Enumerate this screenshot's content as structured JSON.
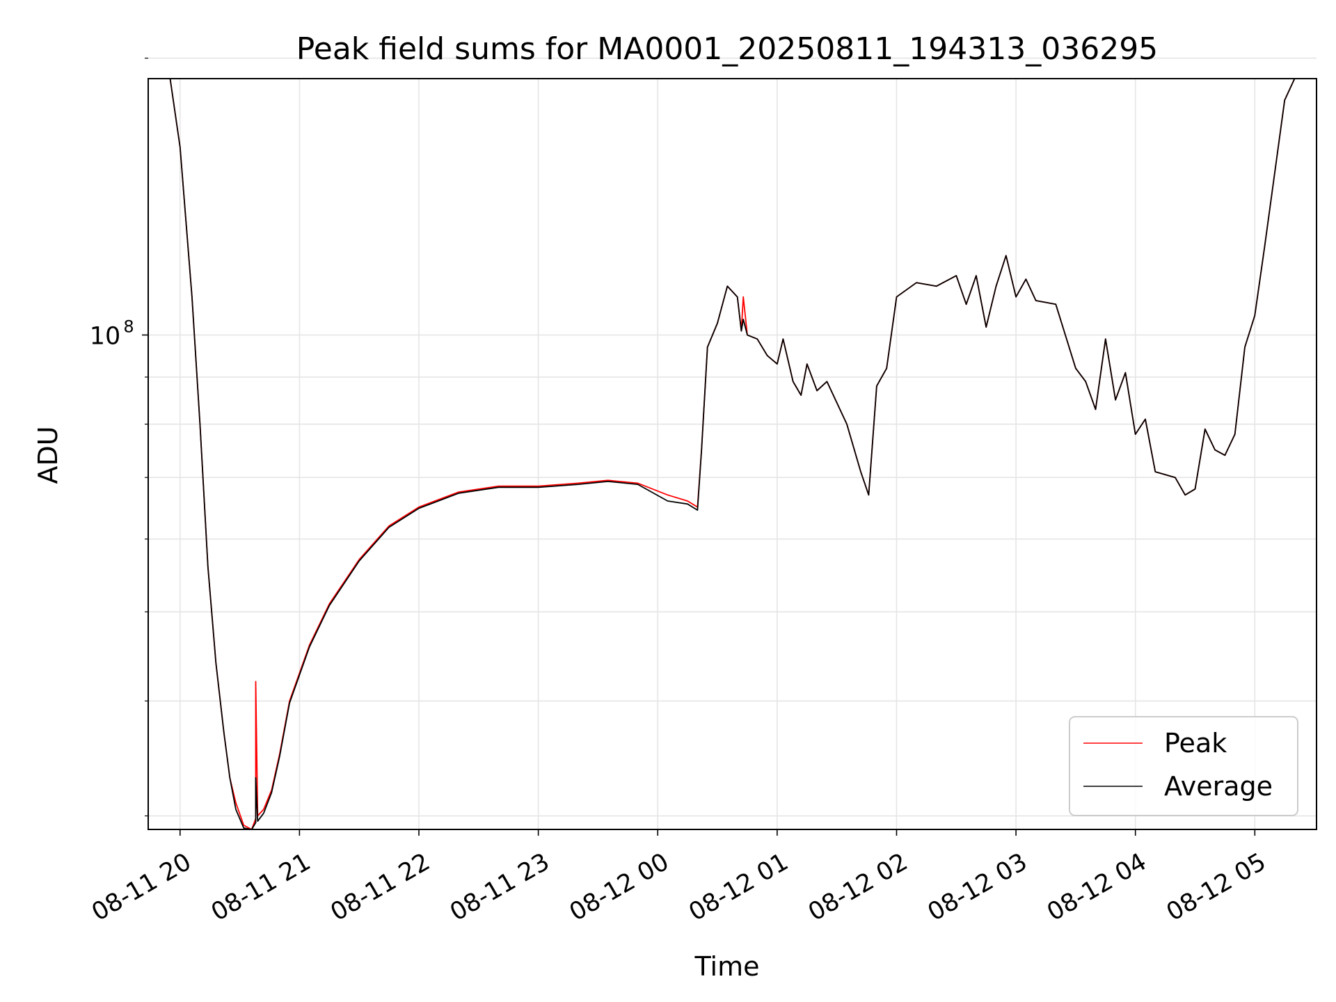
{
  "chart_data": {
    "type": "line",
    "title": "Peak field sums for MA0001_20250811_194313_036295",
    "xlabel": "Time",
    "ylabel": "ADU",
    "y_scale": "log",
    "y_major_tick_label": "10^8",
    "y_major_tick": {
      "base": "10",
      "exponent": "8",
      "value": 100000000
    },
    "x_tick_labels": [
      "08-11 20",
      "08-11 21",
      "08-11 22",
      "08-11 23",
      "08-12 00",
      "08-12 01",
      "08-12 02",
      "08-12 03",
      "08-12 04",
      "08-12 05"
    ],
    "x_ticks": [
      "2025-08-11 20:00",
      "2025-08-11 21:00",
      "2025-08-11 22:00",
      "2025-08-11 23:00",
      "2025-08-12 00:00",
      "2025-08-12 01:00",
      "2025-08-12 02:00",
      "2025-08-12 03:00",
      "2025-08-12 04:00",
      "2025-08-12 05:00"
    ],
    "xlim": [
      "2025-08-11 19:44",
      "2025-08-12 05:31"
    ],
    "ylim": [
      29000000,
      190000000
    ],
    "y_minor_ticks": [
      30000000,
      40000000,
      50000000,
      60000000,
      70000000,
      80000000,
      90000000,
      200000000
    ],
    "grid": true,
    "legend_position": "lower-right",
    "series": [
      {
        "name": "Peak",
        "color": "#ff0000",
        "points": [
          [
            "2025-08-11 19:44",
            190000000
          ],
          [
            "2025-08-11 19:55",
            190000000
          ],
          [
            "2025-08-11 20:00",
            160000000
          ],
          [
            "2025-08-11 20:06",
            110000000
          ],
          [
            "2025-08-11 20:10",
            80000000
          ],
          [
            "2025-08-11 20:14",
            56000000
          ],
          [
            "2025-08-11 20:18",
            44000000
          ],
          [
            "2025-08-11 20:22",
            37000000
          ],
          [
            "2025-08-11 20:25",
            33000000
          ],
          [
            "2025-08-11 20:28",
            31000000
          ],
          [
            "2025-08-11 20:32",
            29300000
          ],
          [
            "2025-08-11 20:36",
            29000000
          ],
          [
            "2025-08-11 20:38",
            29800000
          ],
          [
            "2025-08-11 20:38",
            42000000
          ],
          [
            "2025-08-11 20:39",
            30000000
          ],
          [
            "2025-08-11 20:42",
            30500000
          ],
          [
            "2025-08-11 20:46",
            32000000
          ],
          [
            "2025-08-11 20:50",
            35000000
          ],
          [
            "2025-08-11 20:55",
            40000000
          ],
          [
            "2025-08-11 21:05",
            46000000
          ],
          [
            "2025-08-11 21:15",
            51000000
          ],
          [
            "2025-08-11 21:30",
            57000000
          ],
          [
            "2025-08-11 21:45",
            62000000
          ],
          [
            "2025-08-11 22:00",
            65000000
          ],
          [
            "2025-08-11 22:20",
            67500000
          ],
          [
            "2025-08-11 22:40",
            68500000
          ],
          [
            "2025-08-11 23:00",
            68500000
          ],
          [
            "2025-08-11 23:20",
            69000000
          ],
          [
            "2025-08-11 23:35",
            69500000
          ],
          [
            "2025-08-11 23:50",
            69000000
          ],
          [
            "2025-08-12 00:05",
            67000000
          ],
          [
            "2025-08-12 00:15",
            66000000
          ],
          [
            "2025-08-12 00:20",
            65000000
          ],
          [
            "2025-08-12 00:22",
            75000000
          ],
          [
            "2025-08-12 00:25",
            97000000
          ],
          [
            "2025-08-12 00:30",
            103000000
          ],
          [
            "2025-08-12 00:35",
            113000000
          ],
          [
            "2025-08-12 00:40",
            110000000
          ],
          [
            "2025-08-12 00:42",
            101000000
          ],
          [
            "2025-08-12 00:43",
            110000000
          ],
          [
            "2025-08-12 00:45",
            100000000
          ],
          [
            "2025-08-12 00:50",
            99000000
          ],
          [
            "2025-08-12 00:55",
            95000000
          ],
          [
            "2025-08-12 01:00",
            93000000
          ],
          [
            "2025-08-12 01:03",
            99000000
          ],
          [
            "2025-08-12 01:08",
            89000000
          ],
          [
            "2025-08-12 01:12",
            86000000
          ],
          [
            "2025-08-12 01:15",
            93000000
          ],
          [
            "2025-08-12 01:20",
            87000000
          ],
          [
            "2025-08-12 01:25",
            89000000
          ],
          [
            "2025-08-12 01:35",
            80000000
          ],
          [
            "2025-08-12 01:42",
            71000000
          ],
          [
            "2025-08-12 01:46",
            67000000
          ],
          [
            "2025-08-12 01:50",
            88000000
          ],
          [
            "2025-08-12 01:55",
            92000000
          ],
          [
            "2025-08-12 02:00",
            110000000
          ],
          [
            "2025-08-12 02:10",
            114000000
          ],
          [
            "2025-08-12 02:20",
            113000000
          ],
          [
            "2025-08-12 02:30",
            116000000
          ],
          [
            "2025-08-12 02:35",
            108000000
          ],
          [
            "2025-08-12 02:40",
            116000000
          ],
          [
            "2025-08-12 02:45",
            102000000
          ],
          [
            "2025-08-12 02:50",
            113000000
          ],
          [
            "2025-08-12 02:55",
            122000000
          ],
          [
            "2025-08-12 03:00",
            110000000
          ],
          [
            "2025-08-12 03:05",
            115000000
          ],
          [
            "2025-08-12 03:10",
            109000000
          ],
          [
            "2025-08-12 03:20",
            108000000
          ],
          [
            "2025-08-12 03:30",
            92000000
          ],
          [
            "2025-08-12 03:35",
            89000000
          ],
          [
            "2025-08-12 03:40",
            83000000
          ],
          [
            "2025-08-12 03:45",
            99000000
          ],
          [
            "2025-08-12 03:50",
            85000000
          ],
          [
            "2025-08-12 03:55",
            91000000
          ],
          [
            "2025-08-12 04:00",
            78000000
          ],
          [
            "2025-08-12 04:05",
            81000000
          ],
          [
            "2025-08-12 04:10",
            71000000
          ],
          [
            "2025-08-12 04:20",
            70000000
          ],
          [
            "2025-08-12 04:25",
            67000000
          ],
          [
            "2025-08-12 04:30",
            68000000
          ],
          [
            "2025-08-12 04:35",
            79000000
          ],
          [
            "2025-08-12 04:40",
            75000000
          ],
          [
            "2025-08-12 04:45",
            74000000
          ],
          [
            "2025-08-12 04:50",
            78000000
          ],
          [
            "2025-08-12 04:55",
            97000000
          ],
          [
            "2025-08-12 05:00",
            105000000
          ],
          [
            "2025-08-12 05:05",
            125000000
          ],
          [
            "2025-08-12 05:10",
            150000000
          ],
          [
            "2025-08-12 05:15",
            180000000
          ],
          [
            "2025-08-12 05:20",
            190000000
          ],
          [
            "2025-08-12 05:31",
            190000000
          ]
        ]
      },
      {
        "name": "Average",
        "color": "#000000",
        "points": [
          [
            "2025-08-11 19:44",
            190000000
          ],
          [
            "2025-08-11 19:55",
            190000000
          ],
          [
            "2025-08-11 20:00",
            160000000
          ],
          [
            "2025-08-11 20:06",
            110000000
          ],
          [
            "2025-08-11 20:10",
            80000000
          ],
          [
            "2025-08-11 20:14",
            56000000
          ],
          [
            "2025-08-11 20:18",
            44000000
          ],
          [
            "2025-08-11 20:22",
            37000000
          ],
          [
            "2025-08-11 20:25",
            33000000
          ],
          [
            "2025-08-11 20:28",
            30500000
          ],
          [
            "2025-08-11 20:32",
            29100000
          ],
          [
            "2025-08-11 20:36",
            29000000
          ],
          [
            "2025-08-11 20:38",
            29500000
          ],
          [
            "2025-08-11 20:38",
            33000000
          ],
          [
            "2025-08-11 20:39",
            29600000
          ],
          [
            "2025-08-11 20:42",
            30200000
          ],
          [
            "2025-08-11 20:46",
            31800000
          ],
          [
            "2025-08-11 20:50",
            34800000
          ],
          [
            "2025-08-11 20:55",
            39800000
          ],
          [
            "2025-08-11 21:05",
            45800000
          ],
          [
            "2025-08-11 21:15",
            50800000
          ],
          [
            "2025-08-11 21:30",
            56800000
          ],
          [
            "2025-08-11 21:45",
            61800000
          ],
          [
            "2025-08-11 22:00",
            64800000
          ],
          [
            "2025-08-11 22:20",
            67300000
          ],
          [
            "2025-08-11 22:40",
            68300000
          ],
          [
            "2025-08-11 23:00",
            68300000
          ],
          [
            "2025-08-11 23:20",
            68800000
          ],
          [
            "2025-08-11 23:35",
            69300000
          ],
          [
            "2025-08-11 23:50",
            68800000
          ],
          [
            "2025-08-12 00:05",
            66000000
          ],
          [
            "2025-08-12 00:15",
            65500000
          ],
          [
            "2025-08-12 00:20",
            64500000
          ],
          [
            "2025-08-12 00:22",
            75000000
          ],
          [
            "2025-08-12 00:25",
            97000000
          ],
          [
            "2025-08-12 00:30",
            103000000
          ],
          [
            "2025-08-12 00:35",
            113000000
          ],
          [
            "2025-08-12 00:40",
            110000000
          ],
          [
            "2025-08-12 00:42",
            101000000
          ],
          [
            "2025-08-12 00:43",
            104000000
          ],
          [
            "2025-08-12 00:45",
            100000000
          ],
          [
            "2025-08-12 00:50",
            99000000
          ],
          [
            "2025-08-12 00:55",
            95000000
          ],
          [
            "2025-08-12 01:00",
            93000000
          ],
          [
            "2025-08-12 01:03",
            99000000
          ],
          [
            "2025-08-12 01:08",
            89000000
          ],
          [
            "2025-08-12 01:12",
            86000000
          ],
          [
            "2025-08-12 01:15",
            93000000
          ],
          [
            "2025-08-12 01:20",
            87000000
          ],
          [
            "2025-08-12 01:25",
            89000000
          ],
          [
            "2025-08-12 01:35",
            80000000
          ],
          [
            "2025-08-12 01:42",
            71000000
          ],
          [
            "2025-08-12 01:46",
            67000000
          ],
          [
            "2025-08-12 01:50",
            88000000
          ],
          [
            "2025-08-12 01:55",
            92000000
          ],
          [
            "2025-08-12 02:00",
            110000000
          ],
          [
            "2025-08-12 02:10",
            114000000
          ],
          [
            "2025-08-12 02:20",
            113000000
          ],
          [
            "2025-08-12 02:30",
            116000000
          ],
          [
            "2025-08-12 02:35",
            108000000
          ],
          [
            "2025-08-12 02:40",
            116000000
          ],
          [
            "2025-08-12 02:45",
            102000000
          ],
          [
            "2025-08-12 02:50",
            113000000
          ],
          [
            "2025-08-12 02:55",
            122000000
          ],
          [
            "2025-08-12 03:00",
            110000000
          ],
          [
            "2025-08-12 03:05",
            115000000
          ],
          [
            "2025-08-12 03:10",
            109000000
          ],
          [
            "2025-08-12 03:20",
            108000000
          ],
          [
            "2025-08-12 03:30",
            92000000
          ],
          [
            "2025-08-12 03:35",
            89000000
          ],
          [
            "2025-08-12 03:40",
            83000000
          ],
          [
            "2025-08-12 03:45",
            99000000
          ],
          [
            "2025-08-12 03:50",
            85000000
          ],
          [
            "2025-08-12 03:55",
            91000000
          ],
          [
            "2025-08-12 04:00",
            78000000
          ],
          [
            "2025-08-12 04:05",
            81000000
          ],
          [
            "2025-08-12 04:10",
            71000000
          ],
          [
            "2025-08-12 04:20",
            70000000
          ],
          [
            "2025-08-12 04:25",
            67000000
          ],
          [
            "2025-08-12 04:30",
            68000000
          ],
          [
            "2025-08-12 04:35",
            79000000
          ],
          [
            "2025-08-12 04:40",
            75000000
          ],
          [
            "2025-08-12 04:45",
            74000000
          ],
          [
            "2025-08-12 04:50",
            78000000
          ],
          [
            "2025-08-12 04:55",
            97000000
          ],
          [
            "2025-08-12 05:00",
            105000000
          ],
          [
            "2025-08-12 05:05",
            125000000
          ],
          [
            "2025-08-12 05:10",
            150000000
          ],
          [
            "2025-08-12 05:15",
            180000000
          ],
          [
            "2025-08-12 05:20",
            190000000
          ],
          [
            "2025-08-12 05:31",
            190000000
          ]
        ]
      }
    ]
  },
  "colors": {
    "background": "#ffffff",
    "grid": "#e5e5e5",
    "axes": "#000000",
    "legend_border": "#cccccc"
  }
}
